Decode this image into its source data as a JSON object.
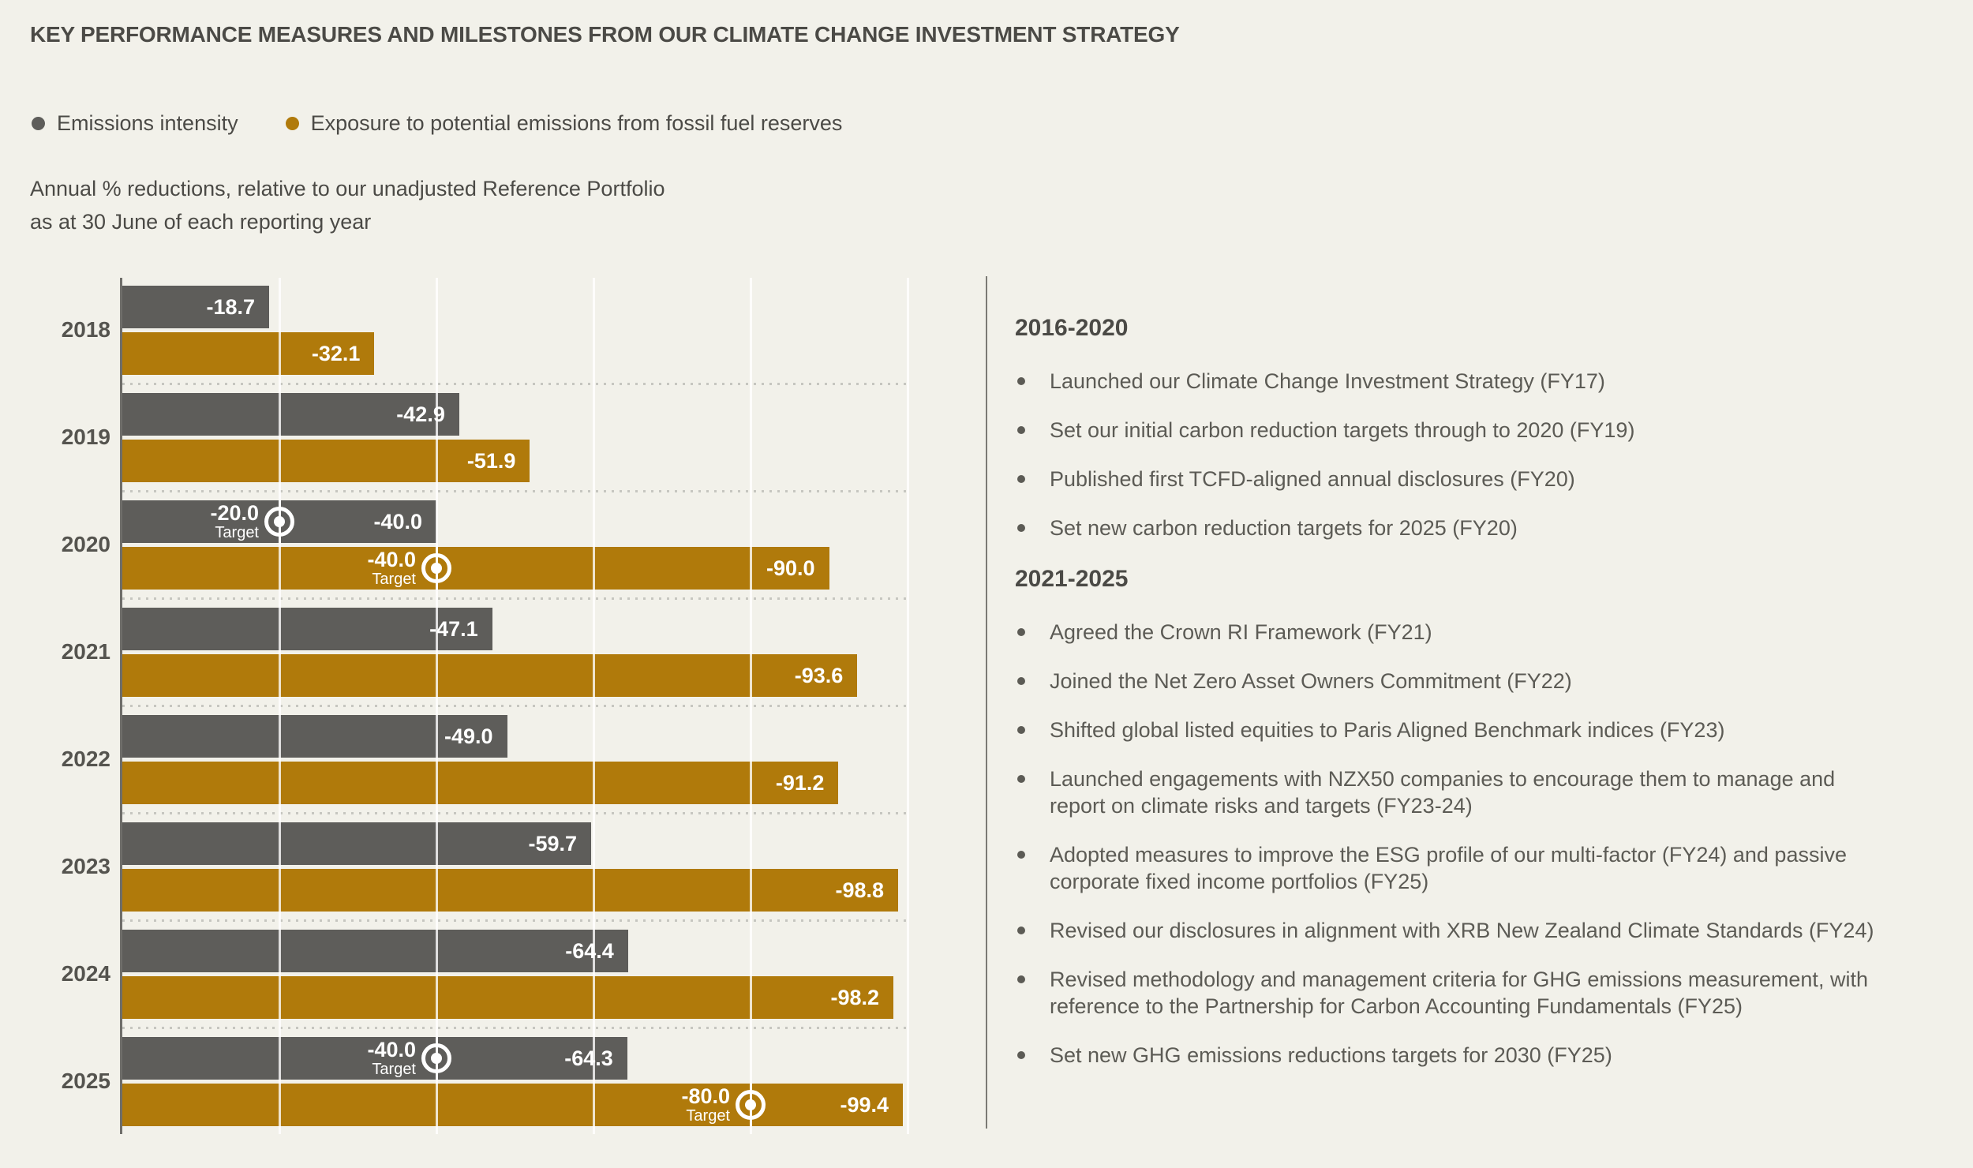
{
  "page": {
    "background": "#F2F1EA",
    "title": "KEY PERFORMANCE MEASURES AND MILESTONES FROM OUR CLIMATE CHANGE INVESTMENT STRATEGY",
    "subtitle": "Annual % reductions, relative to our unadjusted Reference Portfolio\nas at 30 June of each reporting year"
  },
  "legend": {
    "items": [
      {
        "label": "Emissions intensity",
        "color": "#5E5D5A"
      },
      {
        "label": "Exposure to potential emissions from fossil fuel reserves",
        "color": "#B07A0B"
      }
    ]
  },
  "chart_data": {
    "type": "bar",
    "orientation": "horizontal",
    "title": "Annual % reductions, relative to our unadjusted Reference Portfolio as at 30 June of each reporting year",
    "categories": [
      "2018",
      "2019",
      "2020",
      "2021",
      "2022",
      "2023",
      "2024",
      "2025"
    ],
    "series": [
      {
        "name": "Emissions intensity",
        "color": "#5E5D5A",
        "values": [
          -18.7,
          -42.9,
          -40.0,
          -47.1,
          -49.0,
          -59.7,
          -64.4,
          -64.3
        ],
        "targets": [
          null,
          null,
          -20.0,
          null,
          null,
          null,
          null,
          -40.0
        ]
      },
      {
        "name": "Exposure to potential emissions from fossil fuel reserves",
        "color": "#B07A0B",
        "values": [
          -32.1,
          -51.9,
          -90.0,
          -93.6,
          -91.2,
          -98.8,
          -98.2,
          -99.4
        ],
        "targets": [
          null,
          null,
          -40.0,
          null,
          null,
          null,
          null,
          -80.0
        ]
      }
    ],
    "target_label": "Target",
    "xlim": [
      0,
      -100
    ],
    "gridline_step": 20,
    "grid": true,
    "legend_position": "top",
    "value_decimals": 1
  },
  "milestones": {
    "sections": [
      {
        "heading": "2016-2020",
        "items": [
          "Launched our Climate Change Investment Strategy (FY17)",
          "Set our initial carbon reduction targets through to 2020 (FY19)",
          "Published first TCFD-aligned annual disclosures (FY20)",
          "Set new carbon reduction targets for 2025 (FY20)"
        ]
      },
      {
        "heading": "2021-2025",
        "items": [
          "Agreed the Crown RI Framework (FY21)",
          "Joined the Net Zero Asset Owners Commitment (FY22)",
          "Shifted global listed equities to Paris Aligned Benchmark indices (FY23)",
          "Launched engagements with NZX50 companies to encourage them to manage and\nreport on climate risks and targets (FY23-24)",
          "Adopted measures to improve the ESG profile of our multi-factor (FY24) and passive\ncorporate fixed income portfolios (FY25)",
          "Revised our disclosures in alignment with XRB New Zealand Climate Standards (FY24)",
          "Revised methodology and management criteria for GHG emissions measurement, with\nreference to the Partnership for Carbon Accounting Fundamentals (FY25)",
          "Set new GHG emissions reductions targets for 2030 (FY25)"
        ]
      }
    ]
  }
}
